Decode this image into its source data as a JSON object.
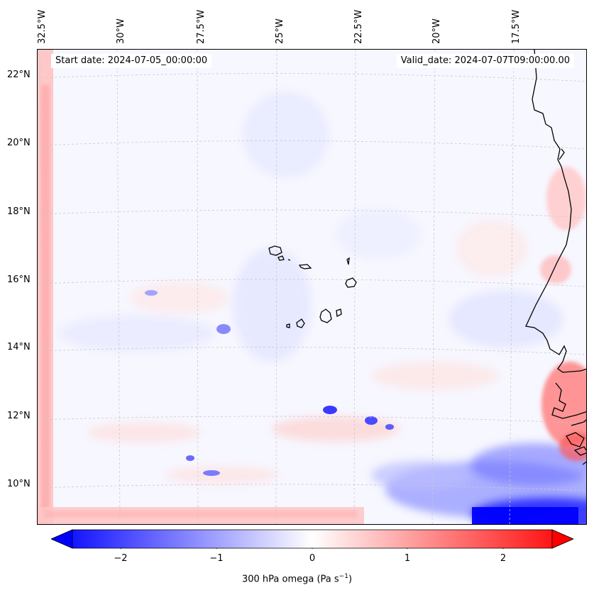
{
  "map": {
    "start_date": "Start date: 2024-07-05_00:00:00",
    "valid_date": "Valid_date: 2024-07-07T09:00:00.00",
    "lon_labels": [
      "32.5°W",
      "30°W",
      "27.5°W",
      "25°W",
      "22.5°W",
      "20°W",
      "17.5°W"
    ],
    "lat_labels": [
      "22°N",
      "20°N",
      "18°N",
      "16°N",
      "14°N",
      "12°N",
      "10°N"
    ],
    "field": "300 hPa omega",
    "colormap": "bwr",
    "accent_colors": {
      "negative": "#0000ff",
      "zero": "#ffffff",
      "positive": "#ff0000"
    }
  },
  "colorbar": {
    "ticks": [
      "−2",
      "−1",
      "0",
      "1",
      "2"
    ],
    "label": "300 hPa omega (Pa s",
    "label_sup": "−1",
    "label_end": ")",
    "vmin": -2.7,
    "vmax": 2.7
  }
}
